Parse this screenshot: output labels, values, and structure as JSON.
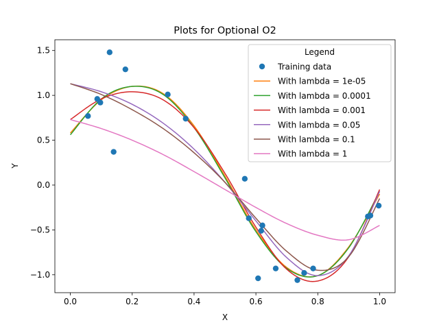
{
  "chart_data": {
    "type": "line",
    "title": "Plots for Optional O2",
    "xlabel": "X",
    "ylabel": "Y",
    "xlim": [
      -0.05,
      1.05
    ],
    "ylim": [
      -1.2,
      1.62
    ],
    "xticks": [
      0.0,
      0.2,
      0.4,
      0.6,
      0.8,
      1.0
    ],
    "xtick_labels": [
      "0.0",
      "0.2",
      "0.4",
      "0.6",
      "0.8",
      "1.0"
    ],
    "yticks": [
      -1.0,
      -0.5,
      0.0,
      0.5,
      1.0,
      1.5
    ],
    "ytick_labels": [
      "−1.0",
      "−0.5",
      "0.0",
      "0.5",
      "1.0",
      "1.5"
    ],
    "grid": false,
    "legend": {
      "title": "Legend",
      "placement": "top-right"
    },
    "scatter": {
      "name": "Training data",
      "color": "#1f77b4",
      "points": [
        [
          0.057,
          0.77
        ],
        [
          0.087,
          0.96
        ],
        [
          0.097,
          0.92
        ],
        [
          0.127,
          1.48
        ],
        [
          0.14,
          0.37
        ],
        [
          0.178,
          1.29
        ],
        [
          0.315,
          1.01
        ],
        [
          0.373,
          0.74
        ],
        [
          0.564,
          0.07
        ],
        [
          0.577,
          -0.37
        ],
        [
          0.607,
          -1.04
        ],
        [
          0.617,
          -0.51
        ],
        [
          0.621,
          -0.45
        ],
        [
          0.664,
          -0.93
        ],
        [
          0.734,
          -1.06
        ],
        [
          0.756,
          -0.98
        ],
        [
          0.785,
          -0.93
        ],
        [
          0.962,
          -0.35
        ],
        [
          0.97,
          -0.34
        ],
        [
          0.997,
          -0.23
        ]
      ]
    },
    "series": [
      {
        "name": "With lambda = 1e-05",
        "color": "#ff7f0e",
        "x": [
          0,
          0.1,
          0.2,
          0.3,
          0.4,
          0.5,
          0.6,
          0.7,
          0.8,
          0.9,
          1.0
        ],
        "y": [
          0.58,
          0.95,
          1.1,
          1.02,
          0.66,
          0.1,
          -0.5,
          -0.92,
          -1.01,
          -0.69,
          -0.1
        ]
      },
      {
        "name": "With lambda = 0.0001",
        "color": "#2ca02c",
        "x": [
          0,
          0.1,
          0.2,
          0.3,
          0.4,
          0.5,
          0.6,
          0.7,
          0.8,
          0.9,
          1.0
        ],
        "y": [
          0.56,
          0.96,
          1.1,
          1.01,
          0.64,
          0.08,
          -0.52,
          -0.93,
          -1.01,
          -0.7,
          -0.07
        ]
      },
      {
        "name": "With lambda = 0.001",
        "color": "#d62728",
        "x": [
          0,
          0.1,
          0.2,
          0.3,
          0.4,
          0.5,
          0.6,
          0.7,
          0.8,
          0.9,
          1.0
        ],
        "y": [
          0.73,
          0.96,
          1.04,
          0.95,
          0.64,
          0.13,
          -0.47,
          -0.94,
          -1.07,
          -0.8,
          -0.05
        ]
      },
      {
        "name": "With lambda = 0.05",
        "color": "#9467bd",
        "x": [
          0,
          0.1,
          0.2,
          0.3,
          0.4,
          0.5,
          0.6,
          0.7,
          0.8,
          0.9,
          1.0
        ],
        "y": [
          1.13,
          1.04,
          0.9,
          0.69,
          0.4,
          0.03,
          -0.4,
          -0.81,
          -1.01,
          -0.79,
          -0.07
        ]
      },
      {
        "name": "With lambda = 0.1",
        "color": "#8c564b",
        "x": [
          0,
          0.1,
          0.2,
          0.3,
          0.4,
          0.5,
          0.6,
          0.7,
          0.8,
          0.9,
          1.0
        ],
        "y": [
          1.13,
          1.01,
          0.84,
          0.63,
          0.36,
          0.03,
          -0.37,
          -0.74,
          -0.95,
          -0.8,
          -0.15
        ]
      },
      {
        "name": "With lambda = 1",
        "color": "#e377c2",
        "x": [
          0,
          0.1,
          0.2,
          0.3,
          0.4,
          0.5,
          0.6,
          0.7,
          0.8,
          0.9,
          1.0
        ],
        "y": [
          0.73,
          0.63,
          0.5,
          0.34,
          0.15,
          -0.05,
          -0.25,
          -0.43,
          -0.56,
          -0.61,
          -0.45
        ]
      }
    ]
  }
}
